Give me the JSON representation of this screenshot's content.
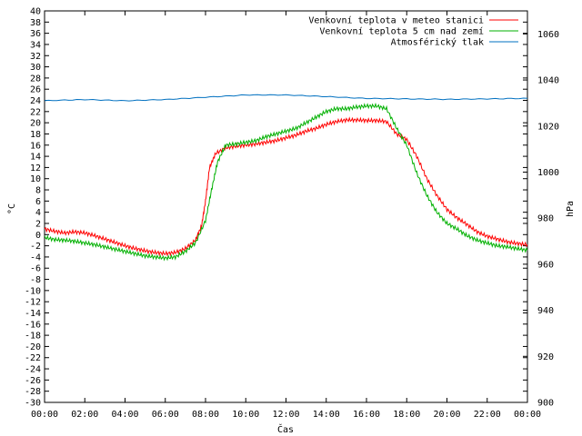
{
  "chart_data": {
    "type": "line",
    "title": "",
    "xlabel": "Čas",
    "ylabel": "°C",
    "y2label": "hPa",
    "xlim": [
      0,
      24
    ],
    "ylim": [
      -30,
      40
    ],
    "y2lim": [
      900,
      1070
    ],
    "legend_position": "top-right",
    "x_ticks": [
      "00:00",
      "02:00",
      "04:00",
      "06:00",
      "08:00",
      "10:00",
      "12:00",
      "14:00",
      "16:00",
      "18:00",
      "20:00",
      "22:00",
      "00:00"
    ],
    "y_ticks": [
      -30,
      -28,
      -26,
      -24,
      -22,
      -20,
      -18,
      -16,
      -14,
      -12,
      -10,
      -8,
      -6,
      -4,
      -2,
      0,
      2,
      4,
      6,
      8,
      10,
      12,
      14,
      16,
      18,
      20,
      22,
      24,
      26,
      28,
      30,
      32,
      34,
      36,
      38,
      40
    ],
    "y2_ticks": [
      900,
      920,
      940,
      960,
      980,
      1000,
      1020,
      1040,
      1060
    ],
    "series": [
      {
        "name": "Venkovní teplota v meteo stanici",
        "color": "#ff0000",
        "axis": "y",
        "x": [
          0,
          0.5,
          1,
          1.5,
          2,
          2.5,
          3,
          3.5,
          4,
          4.5,
          5,
          5.5,
          6,
          6.5,
          7,
          7.5,
          7.8,
          8,
          8.2,
          8.5,
          9,
          9.5,
          10,
          10.5,
          11,
          11.5,
          12,
          12.5,
          13,
          13.5,
          14,
          14.5,
          15,
          15.5,
          16,
          16.5,
          17,
          17.5,
          18,
          18.5,
          19,
          19.5,
          20,
          20.5,
          21,
          21.5,
          22,
          22.5,
          23,
          23.5,
          24
        ],
        "values": [
          1,
          0.6,
          0.3,
          0.5,
          0.3,
          -0.2,
          -0.8,
          -1.4,
          -2,
          -2.5,
          -2.9,
          -3.2,
          -3.4,
          -3.2,
          -2.5,
          -1,
          1.5,
          6,
          12,
          14.5,
          15.5,
          15.8,
          16,
          16.2,
          16.5,
          16.8,
          17.3,
          17.8,
          18.5,
          19,
          19.7,
          20.2,
          20.5,
          20.5,
          20.4,
          20.4,
          20.2,
          18,
          17,
          14,
          10,
          7,
          4.5,
          3,
          1.8,
          0.5,
          -0.3,
          -0.8,
          -1.3,
          -1.6,
          -1.8
        ]
      },
      {
        "name": "Venkovní teplota 5 cm nad zemí",
        "color": "#00b000",
        "axis": "y",
        "x": [
          0,
          0.5,
          1,
          1.5,
          2,
          2.5,
          3,
          3.5,
          4,
          4.5,
          5,
          5.5,
          6,
          6.5,
          7,
          7.5,
          8,
          8.3,
          8.6,
          9,
          9.5,
          10,
          10.5,
          11,
          11.5,
          12,
          12.5,
          13,
          13.5,
          14,
          14.5,
          15,
          15.5,
          16,
          16.5,
          17,
          17.5,
          18,
          18.5,
          19,
          19.5,
          20,
          20.5,
          21,
          21.5,
          22,
          22.5,
          23,
          23.5,
          24
        ],
        "values": [
          -0.5,
          -0.9,
          -1,
          -1.2,
          -1.5,
          -1.8,
          -2.2,
          -2.6,
          -3,
          -3.4,
          -3.8,
          -4,
          -4.2,
          -4,
          -3,
          -1.5,
          2.5,
          8,
          13,
          16,
          16.2,
          16.5,
          16.8,
          17.5,
          18,
          18.5,
          19,
          20,
          21,
          22,
          22.5,
          22.5,
          22.8,
          23,
          23,
          22.5,
          19,
          16,
          11,
          7,
          4,
          2,
          1,
          -0.2,
          -1,
          -1.5,
          -2,
          -2.2,
          -2.5,
          -2.8
        ]
      },
      {
        "name": "Atmosférický tlak",
        "color": "#0070c0",
        "axis": "y2",
        "x": [
          0,
          2,
          4,
          6,
          8,
          10,
          12,
          14,
          16,
          18,
          20,
          22,
          24
        ],
        "values": [
          1031,
          1031.5,
          1031,
          1031.5,
          1032.5,
          1033.5,
          1033.5,
          1032.8,
          1032,
          1031.8,
          1031.6,
          1031.8,
          1032
        ]
      }
    ]
  }
}
